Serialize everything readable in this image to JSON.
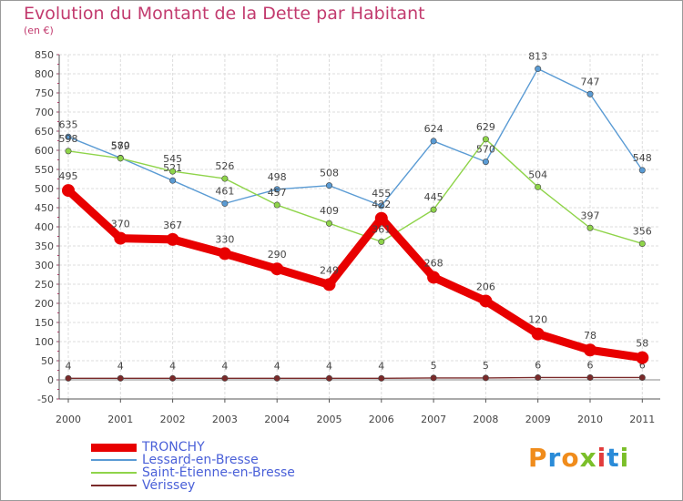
{
  "title": "Evolution du Montant de la Dette par Habitant",
  "subtitle": "(en €)",
  "logo": {
    "text": "Proxiti",
    "colors": [
      "#f08c1c",
      "#2a8bd8",
      "#f08c1c",
      "#7bbf2a",
      "#e23c3c",
      "#2a8bd8",
      "#7bbf2a"
    ]
  },
  "chart_data": {
    "type": "line",
    "title": "Evolution du Montant de la Dette par Habitant",
    "ylabel": "(en €)",
    "xlabel": "",
    "x": [
      "2000",
      "2001",
      "2002",
      "2003",
      "2004",
      "2005",
      "2006",
      "2007",
      "2008",
      "2009",
      "2010",
      "2011"
    ],
    "ylim": [
      -50,
      850
    ],
    "yticks": [
      "-50",
      "0",
      "50",
      "100",
      "150",
      "200",
      "250",
      "300",
      "350",
      "400",
      "450",
      "500",
      "550",
      "600",
      "650",
      "700",
      "750",
      "800",
      "850"
    ],
    "grid": true,
    "series": [
      {
        "name": "TRONCHY",
        "color": "#e80000",
        "emphasis": true,
        "values": [
          495,
          370,
          367,
          330,
          290,
          249,
          422,
          268,
          206,
          120,
          78,
          58
        ],
        "labels": [
          "495",
          "370",
          "367",
          "330",
          "290",
          "249",
          "422",
          "268",
          "206",
          "120",
          "78",
          "58"
        ]
      },
      {
        "name": "Lessard-en-Bresse",
        "color": "#5a9bd4",
        "emphasis": false,
        "values": [
          635,
          580,
          521,
          461,
          498,
          508,
          455,
          624,
          570,
          813,
          747,
          548
        ],
        "labels": [
          "635",
          "580",
          "521",
          "461",
          "498",
          "508",
          "455",
          "624",
          "570",
          "813",
          "747",
          "548"
        ]
      },
      {
        "name": "Saint-Étienne-en-Bresse",
        "color": "#8fd44a",
        "emphasis": false,
        "values": [
          598,
          579,
          545,
          526,
          457,
          409,
          361,
          445,
          629,
          504,
          397,
          356
        ],
        "labels": [
          "598",
          "579",
          "545",
          "526",
          "457",
          "409",
          "361",
          "445",
          "629",
          "504",
          "397",
          "356"
        ]
      },
      {
        "name": "Vérissey",
        "color": "#7a2a2a",
        "emphasis": false,
        "values": [
          4,
          4,
          4,
          4,
          4,
          4,
          4,
          5,
          5,
          6,
          6,
          6
        ],
        "labels": [
          "4",
          "4",
          "4",
          "4",
          "4",
          "4",
          "4",
          "5",
          "5",
          "6",
          "6",
          "6"
        ]
      }
    ]
  }
}
